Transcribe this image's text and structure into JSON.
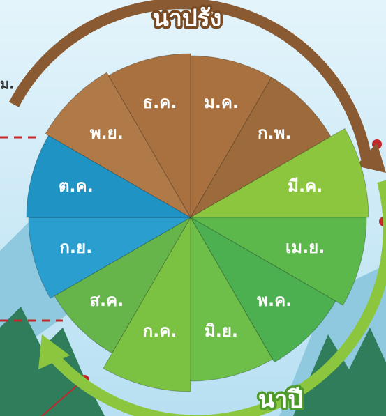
{
  "header": {
    "title": "นาปรัง",
    "side_note": "ม."
  },
  "footer": {
    "title": "นาปี"
  },
  "months": [
    {
      "label": "ม.ค."
    },
    {
      "label": "ก.พ."
    },
    {
      "label": "มี.ค."
    },
    {
      "label": "เม.ย."
    },
    {
      "label": "พ.ค."
    },
    {
      "label": "มิ.ย."
    },
    {
      "label": "ก.ค."
    },
    {
      "label": "ส.ค."
    },
    {
      "label": "ก.ย."
    },
    {
      "label": "ต.ค."
    },
    {
      "label": "พ.ย."
    },
    {
      "label": "ธ.ค."
    }
  ]
}
